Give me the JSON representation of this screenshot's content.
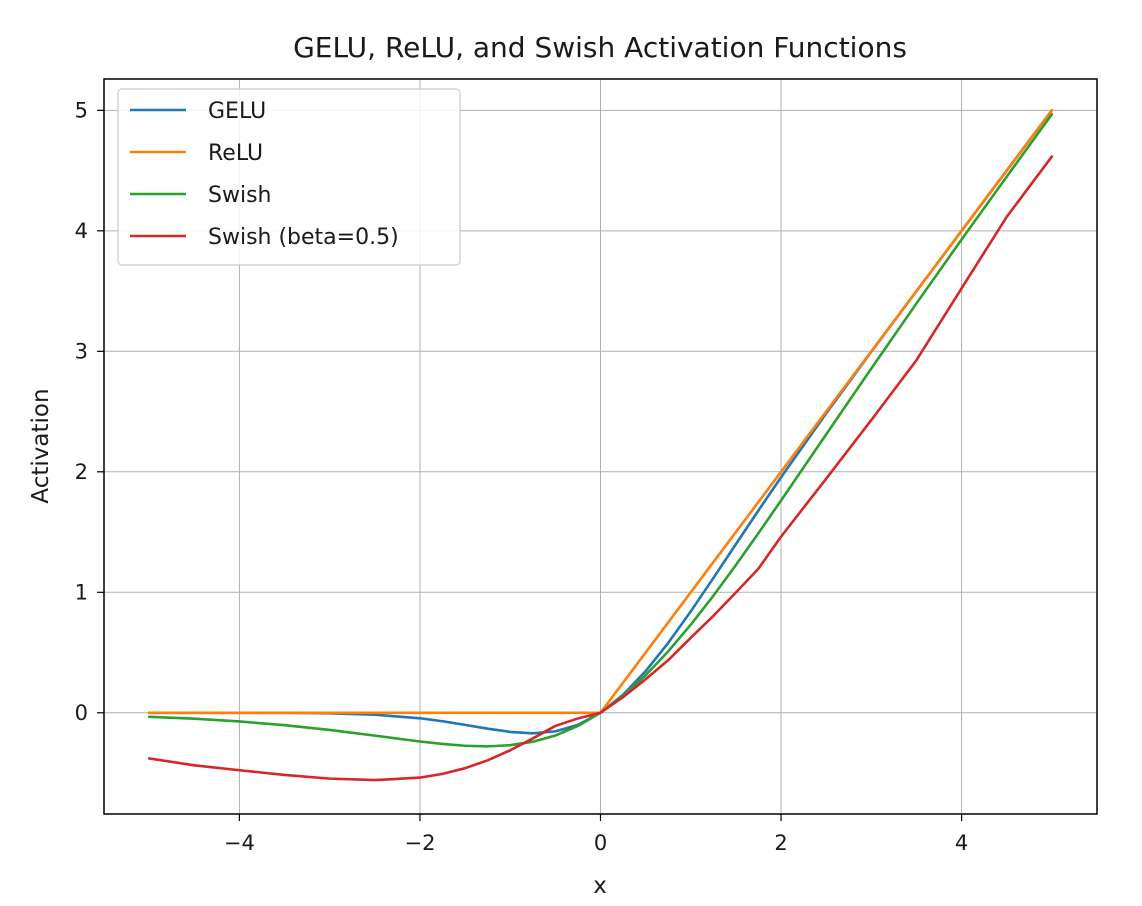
{
  "chart_data": {
    "type": "line",
    "title": "GELU, ReLU, and Swish Activation Functions",
    "xlabel": "x",
    "ylabel": "Activation",
    "xlim": [
      -5.5,
      5.5
    ],
    "ylim": [
      -0.84,
      5.26
    ],
    "xticks": [
      -4,
      -2,
      0,
      2,
      4
    ],
    "xtick_labels": [
      "−4",
      "−2",
      "0",
      "2",
      "4"
    ],
    "yticks": [
      0,
      1,
      2,
      3,
      4,
      5
    ],
    "ytick_labels": [
      "0",
      "1",
      "2",
      "3",
      "4",
      "5"
    ],
    "grid": true,
    "legend_position": "top-left",
    "x": [
      -5.0,
      -4.5,
      -4.0,
      -3.5,
      -3.0,
      -2.5,
      -2.0,
      -1.75,
      -1.5,
      -1.25,
      -1.0,
      -0.75,
      -0.5,
      -0.25,
      0.0,
      0.25,
      0.5,
      0.75,
      1.0,
      1.25,
      1.5,
      1.75,
      2.0,
      2.5,
      3.0,
      3.5,
      4.0,
      4.5,
      5.0
    ],
    "series": [
      {
        "name": "GELU",
        "color": "#1f77b4",
        "values": [
          0.0,
          0.0,
          -0.0001,
          -0.0008,
          -0.004,
          -0.0155,
          -0.0455,
          -0.0702,
          -0.1002,
          -0.132,
          -0.1587,
          -0.17,
          -0.1543,
          -0.1003,
          0.0,
          0.1497,
          0.3457,
          0.58,
          0.8413,
          1.118,
          1.3998,
          1.6798,
          1.9545,
          2.4845,
          2.996,
          3.4992,
          3.9999,
          4.5,
          5.0
        ]
      },
      {
        "name": "ReLU",
        "color": "#ff7f0e",
        "values": [
          0,
          0,
          0,
          0,
          0,
          0,
          0,
          0,
          0,
          0,
          0,
          0,
          0,
          0,
          0,
          0.25,
          0.5,
          0.75,
          1.0,
          1.25,
          1.5,
          1.75,
          2.0,
          2.5,
          3.0,
          3.5,
          4.0,
          4.5,
          5.0
        ]
      },
      {
        "name": "Swish",
        "color": "#2ca02c",
        "values": [
          -0.0335,
          -0.0493,
          -0.0719,
          -0.1033,
          -0.1423,
          -0.1896,
          -0.2384,
          -0.2587,
          -0.2736,
          -0.2788,
          -0.2689,
          -0.2401,
          -0.1888,
          -0.1094,
          0.0,
          0.1406,
          0.3112,
          0.5099,
          0.7311,
          0.9712,
          1.2264,
          1.4913,
          1.7616,
          2.3104,
          2.8577,
          3.3973,
          3.9281,
          4.45,
          4.9665
        ]
      },
      {
        "name": "Swish (beta=0.5)",
        "color": "#d62728",
        "values": [
          -0.3786,
          -0.4359,
          -0.4768,
          -0.5155,
          -0.5464,
          -0.5587,
          -0.5379,
          -0.5072,
          -0.4597,
          -0.3945,
          -0.3112,
          -0.2129,
          -0.1092,
          -0.047,
          0.0,
          0.1305,
          0.2781,
          0.4368,
          0.6225,
          0.8043,
          0.9982,
          1.1968,
          1.4621,
          1.9428,
          2.4298,
          2.926,
          3.5232,
          4.116,
          4.6163
        ]
      }
    ]
  }
}
